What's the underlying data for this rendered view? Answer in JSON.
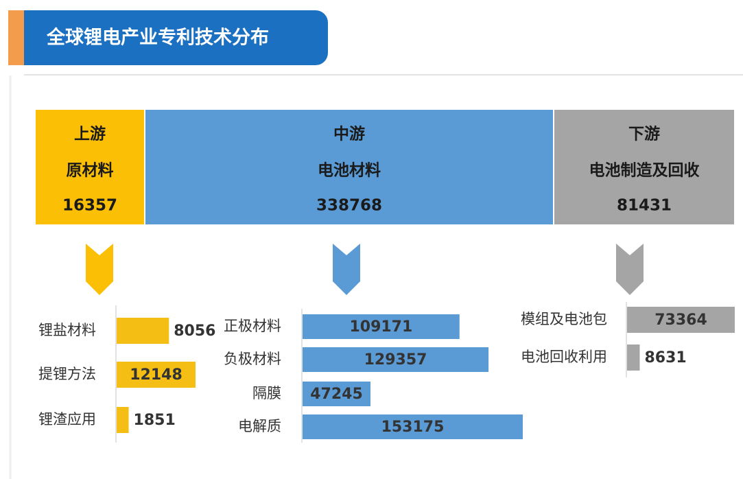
{
  "title": "全球锂电产业专利技术分布",
  "stages": [
    {
      "name": "上游",
      "sub": "原材料",
      "value": 16357,
      "color": "#fbbf06"
    },
    {
      "name": "中游",
      "sub": "电池材料",
      "value": 338768,
      "color": "#5b9bd5"
    },
    {
      "name": "下游",
      "sub": "电池制造及回收",
      "value": 81431,
      "color": "#a5a5a5"
    }
  ],
  "chart_data": [
    {
      "type": "bar",
      "orientation": "horizontal",
      "categories": [
        "锂盐材料",
        "提锂方法",
        "锂渣应用"
      ],
      "values": [
        8056,
        12148,
        1851
      ],
      "color": "#f5be14"
    },
    {
      "type": "bar",
      "orientation": "horizontal",
      "categories": [
        "正极材料",
        "负极材料",
        "隔膜",
        "电解质"
      ],
      "values": [
        109171,
        129357,
        47245,
        153175
      ],
      "color": "#5b9bd5"
    },
    {
      "type": "bar",
      "orientation": "horizontal",
      "categories": [
        "模组及电池包",
        "电池回收利用"
      ],
      "values": [
        73364,
        8631
      ],
      "color": "#a5a5a5"
    }
  ]
}
